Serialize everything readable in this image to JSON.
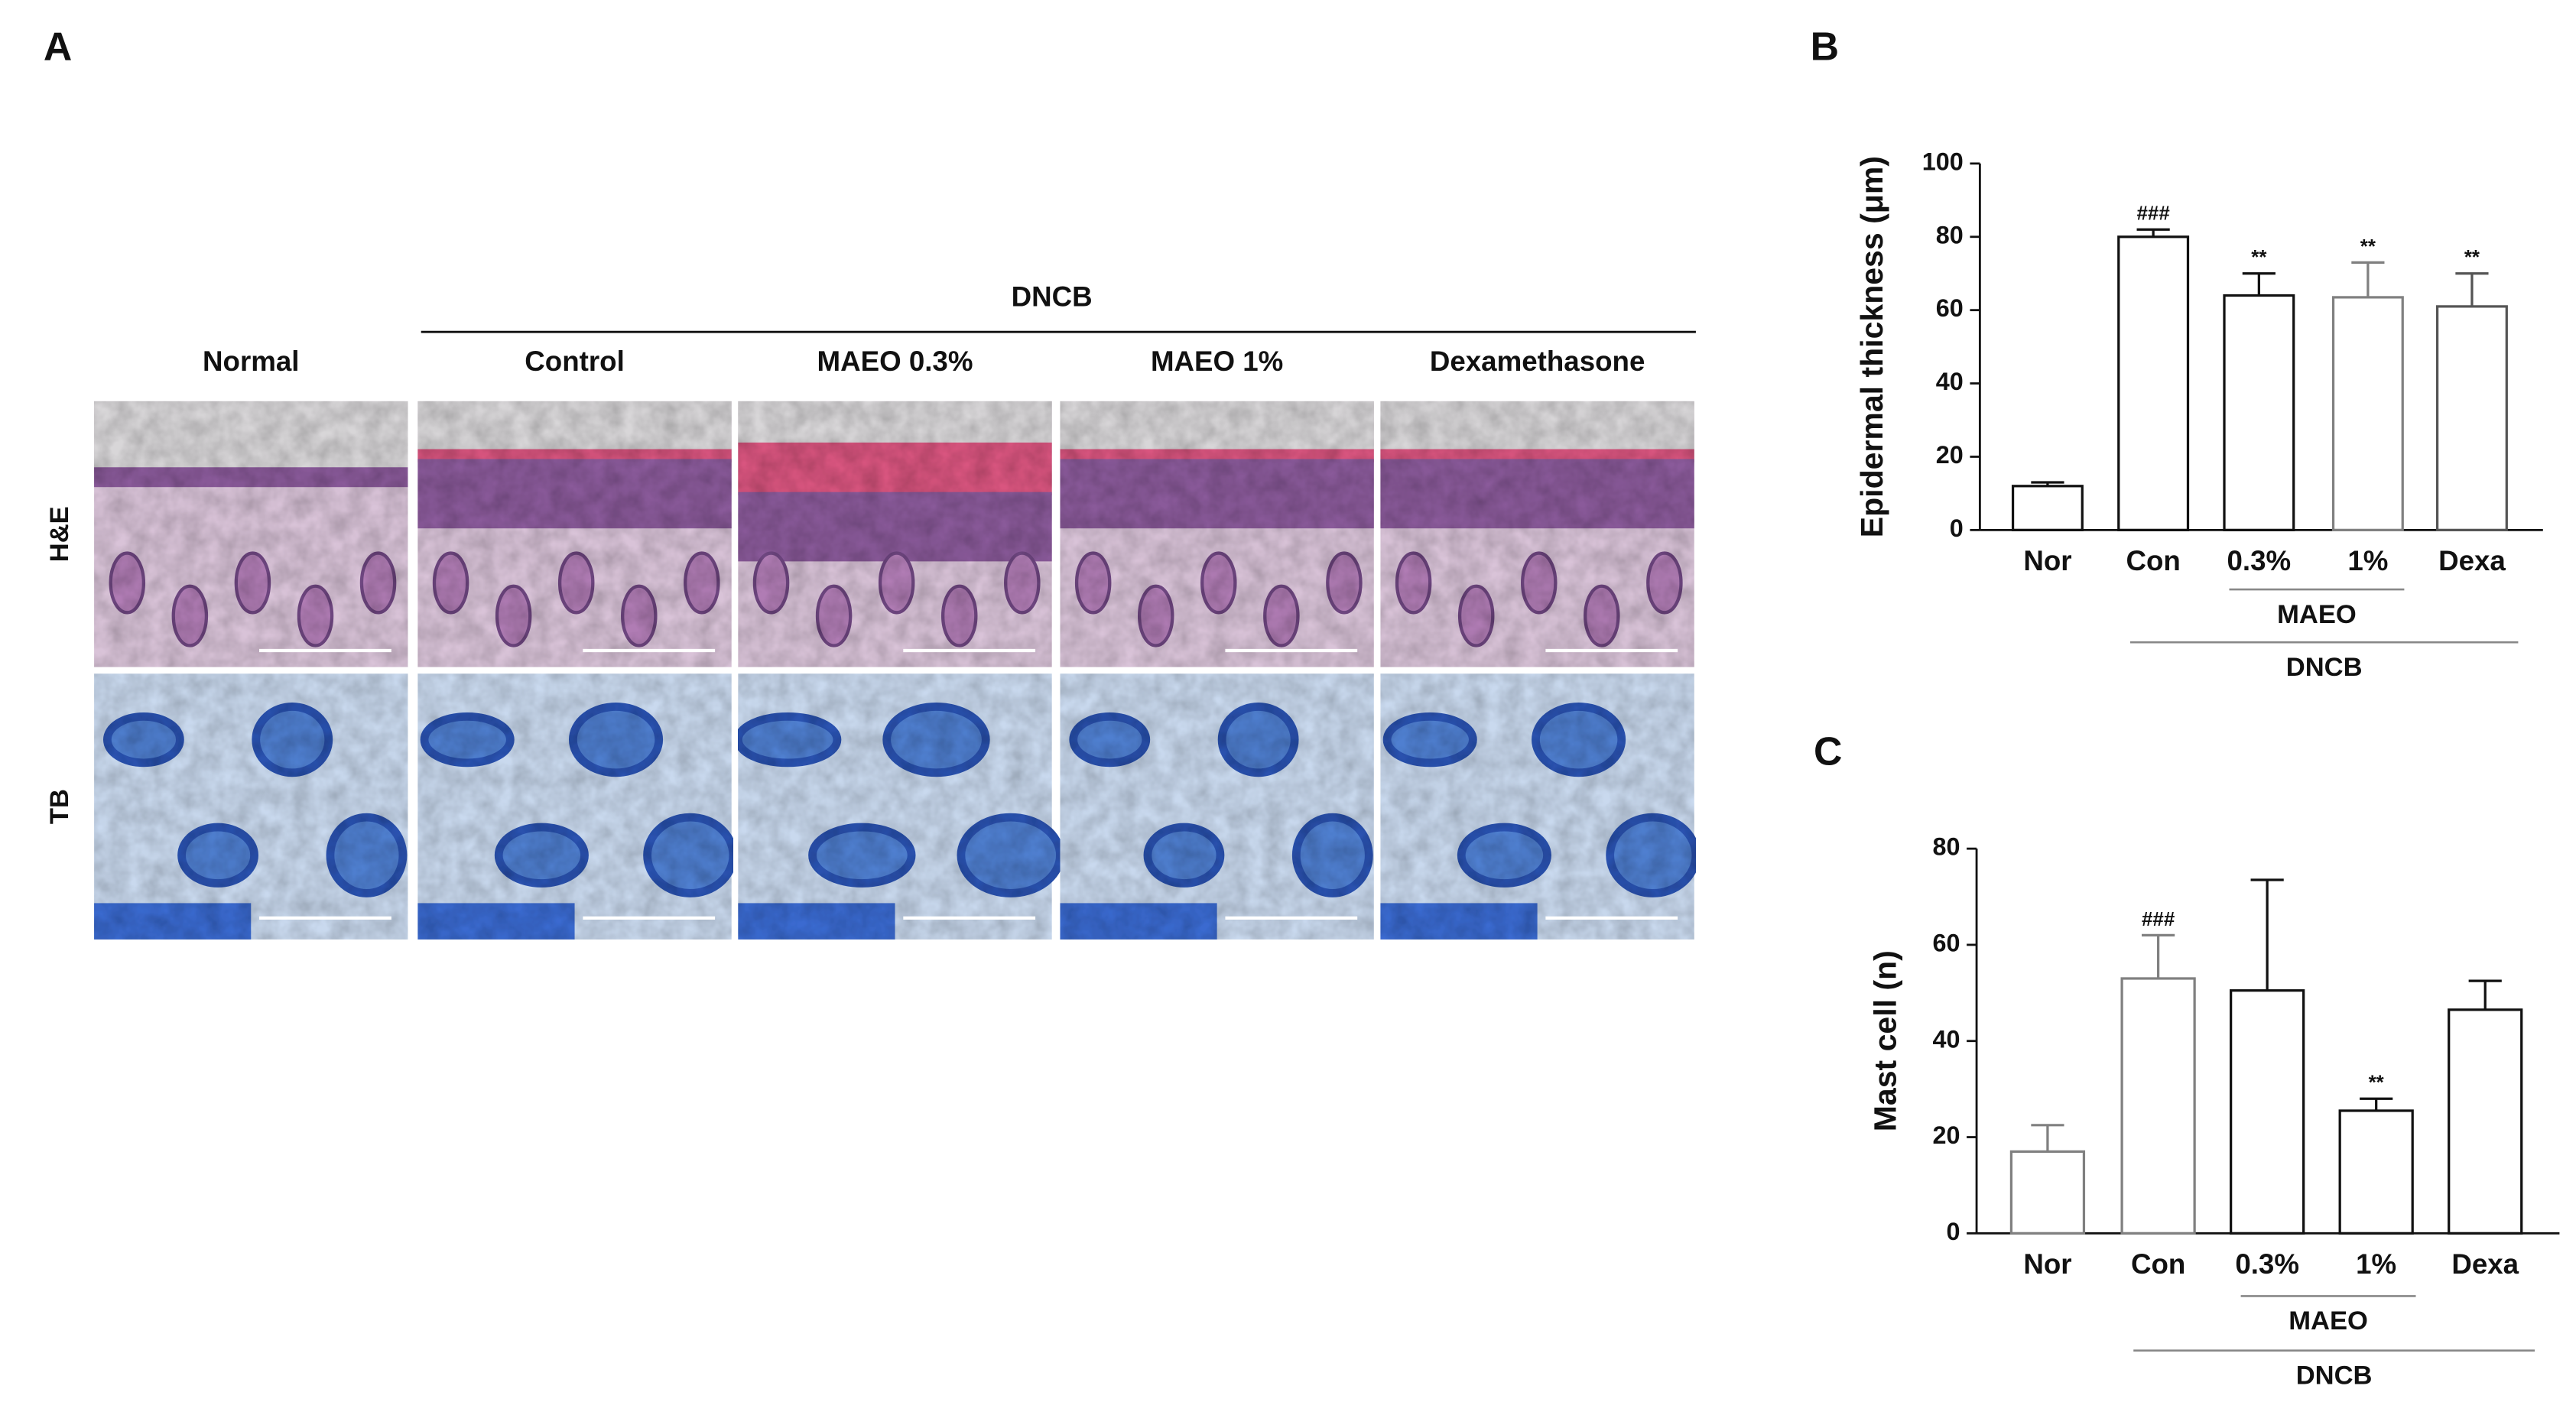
{
  "panel_a": {
    "letter": "A",
    "group": "DNCB",
    "columns": [
      "Normal",
      "Control",
      "MAEO 0.3%",
      "MAEO 1%",
      "Dexamethasone"
    ],
    "rows": [
      "H&E",
      "TB"
    ]
  },
  "chart_data": [
    {
      "type": "bar",
      "letter": "B",
      "y_label": "Epidermal thickness (μm)",
      "categories": [
        "Nor",
        "Con",
        "0.3%",
        "1%",
        "Dexa"
      ],
      "values": [
        12,
        80,
        64,
        63.5,
        61
      ],
      "errors": [
        1,
        2,
        6,
        9.5,
        9
      ],
      "bar_labels": [
        null,
        "###",
        "**",
        "**",
        "**"
      ],
      "colors": [
        "#111111",
        "#111111",
        "#111111",
        "#808080",
        "#555555"
      ],
      "group_labels": [
        "MAEO",
        "DNCB"
      ],
      "ylim": [
        0,
        100
      ],
      "yticks": [
        0,
        20,
        40,
        60,
        80,
        100
      ]
    },
    {
      "type": "bar",
      "letter": "C",
      "y_label": "Mast cell (n)",
      "categories": [
        "Nor",
        "Con",
        "0.3%",
        "1%",
        "Dexa"
      ],
      "values": [
        17,
        53,
        50.5,
        25.5,
        46.5
      ],
      "errors": [
        5.5,
        9,
        23,
        2.5,
        6
      ],
      "bar_labels": [
        null,
        "###",
        null,
        "**",
        null
      ],
      "colors": [
        "#808080",
        "#808080",
        "#111111",
        "#111111",
        "#111111"
      ],
      "group_labels": [
        "MAEO",
        "DNCB"
      ],
      "ylim": [
        0,
        80
      ],
      "yticks": [
        0,
        20,
        40,
        60,
        80
      ]
    }
  ]
}
